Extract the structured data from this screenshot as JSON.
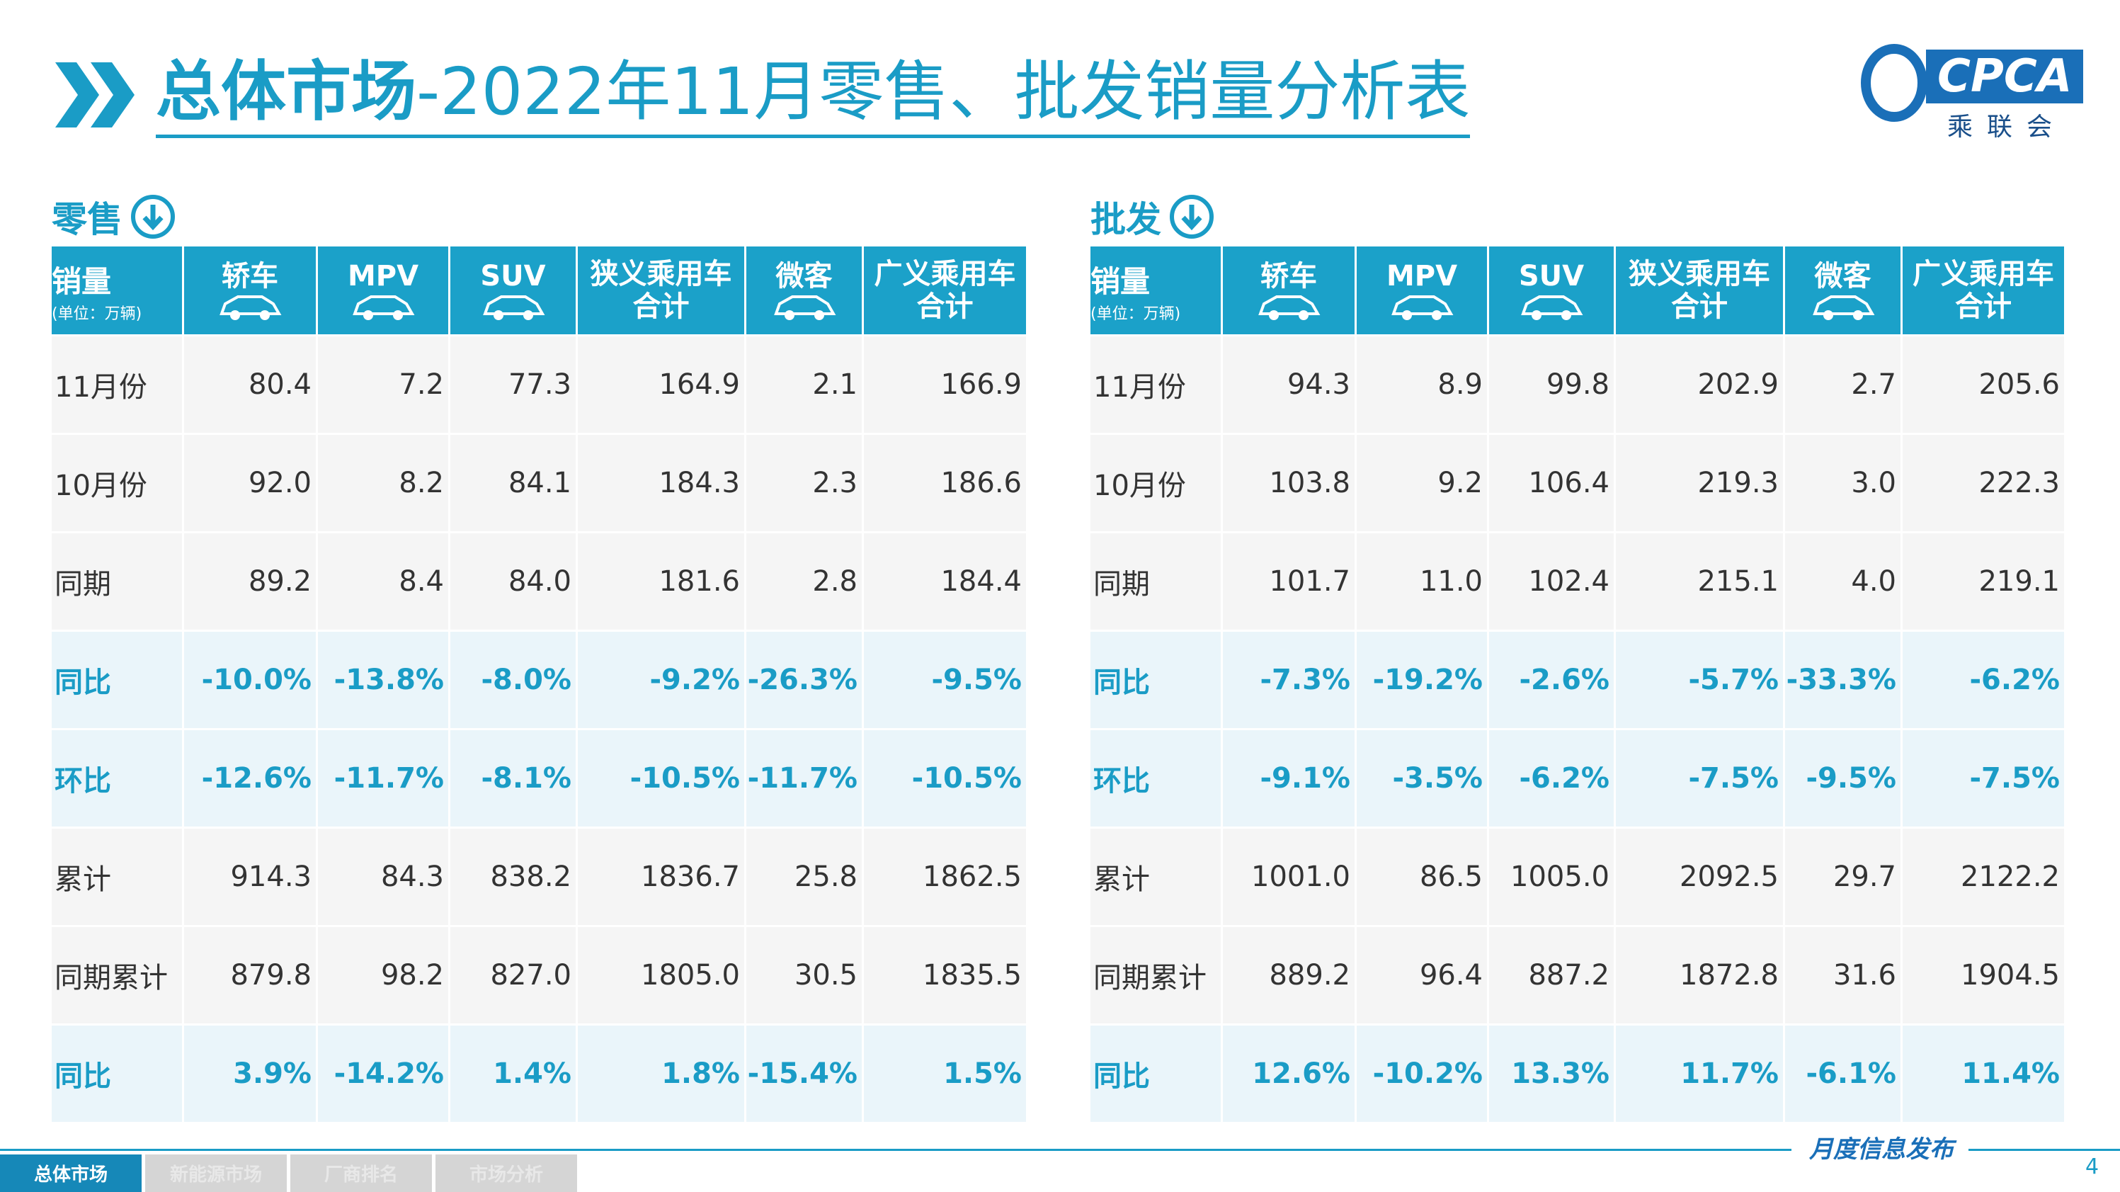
{
  "header": {
    "title_main": "总体市场",
    "title_rest": "-2022年11月零售、批发销量分析表",
    "logo": "CPCA",
    "logo_sub": "乘联会"
  },
  "tables": [
    {
      "title": "零售",
      "unit_label": "销量",
      "unit_note": "(单位：万辆)",
      "columns": [
        "轿车",
        "MPV",
        "SUV",
        "狭义乘用车合计",
        "微客",
        "广义乘用车合计"
      ],
      "rows": [
        [
          "11月份",
          "80.4",
          "7.2",
          "77.3",
          "164.9",
          "2.1",
          "166.9"
        ],
        [
          "10月份",
          "92.0",
          "8.2",
          "84.1",
          "184.3",
          "2.3",
          "186.6"
        ],
        [
          "同期",
          "89.2",
          "8.4",
          "84.0",
          "181.6",
          "2.8",
          "184.4"
        ],
        [
          "同比",
          "-10.0%",
          "-13.8%",
          "-8.0%",
          "-9.2%",
          "-26.3%",
          "-9.5%"
        ],
        [
          "环比",
          "-12.6%",
          "-11.7%",
          "-8.1%",
          "-10.5%",
          "-11.7%",
          "-10.5%"
        ],
        [
          "累计",
          "914.3",
          "84.3",
          "838.2",
          "1836.7",
          "25.8",
          "1862.5"
        ],
        [
          "同期累计",
          "879.8",
          "98.2",
          "827.0",
          "1805.0",
          "30.5",
          "1835.5"
        ],
        [
          "同比",
          "3.9%",
          "-14.2%",
          "1.4%",
          "1.8%",
          "-15.4%",
          "1.5%"
        ]
      ]
    },
    {
      "title": "批发",
      "unit_label": "销量",
      "unit_note": "(单位：万辆)",
      "columns": [
        "轿车",
        "MPV",
        "SUV",
        "狭义乘用车合计",
        "微客",
        "广义乘用车合计"
      ],
      "rows": [
        [
          "11月份",
          "94.3",
          "8.9",
          "99.8",
          "202.9",
          "2.7",
          "205.6"
        ],
        [
          "10月份",
          "103.8",
          "9.2",
          "106.4",
          "219.3",
          "3.0",
          "222.3"
        ],
        [
          "同期",
          "101.7",
          "11.0",
          "102.4",
          "215.1",
          "4.0",
          "219.1"
        ],
        [
          "同比",
          "-7.3%",
          "-19.2%",
          "-2.6%",
          "-5.7%",
          "-33.3%",
          "-6.2%"
        ],
        [
          "环比",
          "-9.1%",
          "-3.5%",
          "-6.2%",
          "-7.5%",
          "-9.5%",
          "-7.5%"
        ],
        [
          "累计",
          "1001.0",
          "86.5",
          "1005.0",
          "2092.5",
          "29.7",
          "2122.2"
        ],
        [
          "同期累计",
          "889.2",
          "96.4",
          "887.2",
          "1872.8",
          "31.6",
          "1904.5"
        ],
        [
          "同比",
          "12.6%",
          "-10.2%",
          "13.3%",
          "11.7%",
          "-6.1%",
          "11.4%"
        ]
      ]
    }
  ],
  "footer": {
    "tabs": [
      "总体市场",
      "新能源市场",
      "厂商排名",
      "市场分析"
    ],
    "caption": "月度信息发布",
    "page": "4"
  }
}
